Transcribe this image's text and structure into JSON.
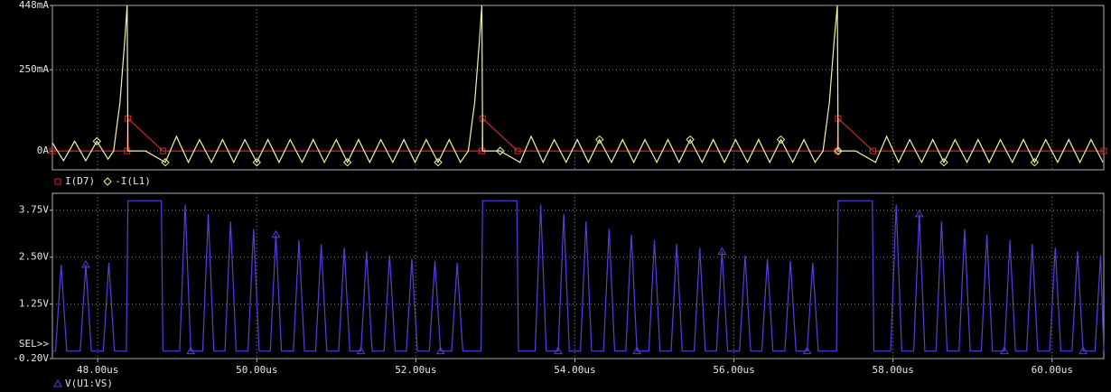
{
  "chart_data": [
    {
      "type": "line",
      "xlim": [
        47.43,
        60.65
      ],
      "ylim": [
        -58,
        448
      ],
      "yticks": [
        {
          "value": 0,
          "label": "0A"
        },
        {
          "value": 250,
          "label": "250mA"
        },
        {
          "value": 448,
          "label": "448mA"
        }
      ],
      "grid": true,
      "series": [
        {
          "name": "I(D7)",
          "color": "#d02828",
          "marker": "square",
          "x": [
            47.43,
            48.37,
            48.38,
            48.82,
            52.83,
            52.84,
            53.28,
            57.3,
            57.31,
            57.75,
            60.65
          ],
          "values": [
            0,
            0,
            100,
            0,
            0,
            100,
            0,
            0,
            100,
            0,
            0
          ]
        },
        {
          "name": "-I(L1)",
          "color": "#f2f2a8",
          "marker": "diamond",
          "x": [
            47.43,
            47.57,
            47.71,
            47.85,
            47.99,
            48.13,
            48.2,
            48.28,
            48.34,
            48.37,
            48.38,
            48.6,
            48.85,
            48.99,
            49.14,
            49.28,
            49.43,
            49.57,
            49.71,
            49.85,
            50.0,
            50.14,
            50.28,
            50.42,
            50.57,
            50.71,
            50.85,
            51.0,
            51.14,
            51.28,
            51.42,
            51.56,
            51.71,
            51.85,
            51.99,
            52.13,
            52.28,
            52.42,
            52.56,
            52.66,
            52.74,
            52.8,
            52.83,
            52.84,
            53.06,
            53.31,
            53.45,
            53.6,
            53.74,
            53.89,
            54.03,
            54.17,
            54.31,
            54.46,
            54.6,
            54.74,
            54.88,
            55.03,
            55.17,
            55.31,
            55.45,
            55.6,
            55.74,
            55.88,
            56.02,
            56.17,
            56.31,
            56.45,
            56.59,
            56.74,
            56.88,
            57.02,
            57.12,
            57.2,
            57.26,
            57.3,
            57.31,
            57.53,
            57.78,
            57.92,
            58.07,
            58.21,
            58.36,
            58.5,
            58.64,
            58.78,
            58.93,
            59.07,
            59.21,
            59.35,
            59.5,
            59.64,
            59.78,
            59.92,
            60.07,
            60.21,
            60.35,
            60.49,
            60.64
          ],
          "values": [
            25,
            -30,
            30,
            -30,
            30,
            -25,
            0,
            150,
            340,
            448,
            0,
            0,
            -35,
            45,
            -35,
            35,
            -35,
            35,
            -35,
            35,
            -35,
            35,
            -35,
            35,
            -35,
            35,
            -35,
            35,
            -35,
            35,
            -35,
            35,
            -35,
            35,
            -35,
            35,
            -35,
            35,
            -35,
            0,
            150,
            340,
            448,
            0,
            0,
            -35,
            45,
            -35,
            35,
            -35,
            35,
            -35,
            35,
            -35,
            35,
            -35,
            35,
            -35,
            35,
            -35,
            35,
            -35,
            35,
            -35,
            35,
            -35,
            35,
            -35,
            35,
            -35,
            35,
            -35,
            0,
            150,
            340,
            448,
            0,
            0,
            -35,
            45,
            -35,
            35,
            -35,
            35,
            -35,
            35,
            -35,
            35,
            -35,
            35,
            -35,
            35,
            -35,
            35,
            -35,
            35,
            -35,
            35,
            -35
          ]
        }
      ]
    },
    {
      "type": "line",
      "xlim": [
        47.43,
        60.65
      ],
      "ylim": [
        -0.2,
        4.2
      ],
      "yticks": [
        {
          "value": -0.2,
          "label": "-0.20V"
        },
        {
          "value": 1.25,
          "label": "1.25V"
        },
        {
          "value": 2.5,
          "label": "2.50V"
        },
        {
          "value": 3.75,
          "label": "3.75V"
        }
      ],
      "xticks": [
        {
          "value": 48,
          "label": "48.00us"
        },
        {
          "value": 50,
          "label": "50.00us"
        },
        {
          "value": 52,
          "label": "52.00us"
        },
        {
          "value": 54,
          "label": "54.00us"
        },
        {
          "value": 56,
          "label": "56.00us"
        },
        {
          "value": 58,
          "label": "58.00us"
        },
        {
          "value": 60,
          "label": "60.00us"
        }
      ],
      "grid": true,
      "selector_label": "SEL>>",
      "series": [
        {
          "name": "V(U1:VS)",
          "color": "#5a3ce0",
          "marker": "triangle",
          "x": [
            47.43,
            47.47,
            47.54,
            47.61,
            47.78,
            47.85,
            47.92,
            48.07,
            48.14,
            48.21,
            48.36,
            48.38,
            48.8,
            48.82,
            49.03,
            49.1,
            49.17,
            49.32,
            49.39,
            49.46,
            49.6,
            49.67,
            49.74,
            49.89,
            49.96,
            50.03,
            50.17,
            50.24,
            50.31,
            50.46,
            50.53,
            50.6,
            50.74,
            50.81,
            50.88,
            51.03,
            51.1,
            51.17,
            51.31,
            51.38,
            51.45,
            51.6,
            51.67,
            51.74,
            51.88,
            51.95,
            52.02,
            52.17,
            52.24,
            52.31,
            52.45,
            52.52,
            52.59,
            52.82,
            52.84,
            53.27,
            53.29,
            53.5,
            53.57,
            53.64,
            53.79,
            53.86,
            53.93,
            54.07,
            54.14,
            54.21,
            54.36,
            54.43,
            54.5,
            54.64,
            54.71,
            54.78,
            54.93,
            55.0,
            55.07,
            55.21,
            55.28,
            55.35,
            55.5,
            55.57,
            55.64,
            55.78,
            55.85,
            55.92,
            56.07,
            56.14,
            56.21,
            56.35,
            56.42,
            56.49,
            56.64,
            56.71,
            56.78,
            56.92,
            56.99,
            57.06,
            57.29,
            57.31,
            57.74,
            57.76,
            57.97,
            58.04,
            58.11,
            58.26,
            58.33,
            58.4,
            58.54,
            58.61,
            58.68,
            58.83,
            58.9,
            58.97,
            59.11,
            59.18,
            59.25,
            59.4,
            59.47,
            59.54,
            59.68,
            59.75,
            59.82,
            59.97,
            60.04,
            60.11,
            60.25,
            60.32,
            60.39,
            60.54,
            60.61,
            60.65
          ],
          "values": [
            0,
            0,
            2.3,
            0,
            0,
            2.3,
            0,
            0,
            2.35,
            0,
            0,
            4.0,
            4.0,
            0,
            0,
            3.9,
            0,
            0,
            3.65,
            0,
            0,
            3.45,
            0,
            0,
            3.25,
            0,
            0,
            3.1,
            0,
            0,
            2.95,
            0,
            0,
            2.85,
            0,
            0,
            2.75,
            0,
            0,
            2.65,
            0,
            0,
            2.55,
            0,
            0,
            2.45,
            0,
            0,
            2.4,
            0,
            0,
            2.35,
            0,
            0,
            4.0,
            4.0,
            0,
            0,
            3.9,
            0,
            0,
            3.65,
            0,
            0,
            3.45,
            0,
            0,
            3.25,
            0,
            0,
            3.1,
            0,
            0,
            2.95,
            0,
            0,
            2.85,
            0,
            0,
            2.75,
            0,
            0,
            2.65,
            0,
            0,
            2.55,
            0,
            0,
            2.45,
            0,
            0,
            2.4,
            0,
            0,
            2.35,
            0,
            0,
            4.0,
            4.0,
            0,
            0,
            3.9,
            0,
            0,
            3.65,
            0,
            0,
            3.45,
            0,
            0,
            3.25,
            0,
            0,
            3.1,
            0,
            0,
            2.95,
            0,
            0,
            2.85,
            0,
            0,
            2.75,
            0,
            0,
            2.65,
            0,
            0,
            2.55,
            0
          ]
        }
      ]
    }
  ]
}
